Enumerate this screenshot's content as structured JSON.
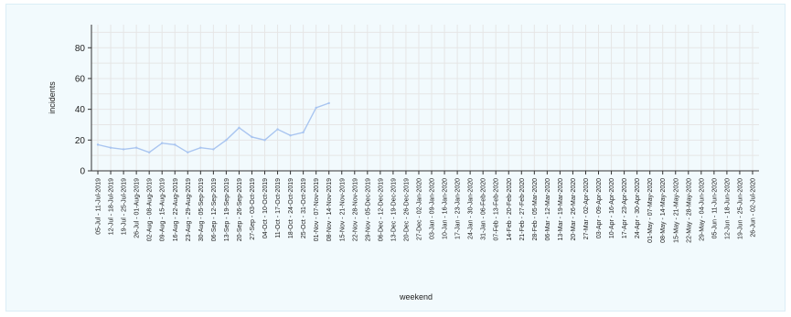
{
  "chart_data": {
    "type": "line",
    "xlabel": "weekend",
    "ylabel": "incidents",
    "ylim": [
      0,
      95
    ],
    "yticks": [
      0,
      20,
      40,
      60,
      80
    ],
    "grid": true,
    "line_color": "#a9c5f0",
    "x": [
      "05-Jul - 11-Jul-2019",
      "12-Jul - 18-Jul-2019",
      "19-Jul - 25-Jul-2019",
      "26-Jul - 01-Aug-2019",
      "02-Aug - 08-Aug-2019",
      "09-Aug - 15-Aug-2019",
      "16-Aug - 22-Aug-2019",
      "23-Aug - 29-Aug-2019",
      "30-Aug - 05-Sep-2019",
      "06-Sep - 12-Sep-2019",
      "13-Sep - 19-Sep-2019",
      "20-Sep - 26-Sep-2019",
      "27-Sep - 03-Oct-2019",
      "04-Oct - 10-Oct-2019",
      "11-Oct - 17-Oct-2019",
      "18-Oct - 24-Oct-2019",
      "25-Oct - 31-Oct-2019",
      "01-Nov - 07-Nov-2019",
      "08-Nov - 14-Nov-2019",
      "15-Nov - 21-Nov-2019",
      "22-Nov - 28-Nov-2019",
      "29-Nov - 05-Dec-2019",
      "06-Dec - 12-Dec-2019",
      "13-Dec - 19-Dec-2019",
      "20-Dec - 26-Dec-2019",
      "27-Dec - 02-Jan-2020",
      "03-Jan - 09-Jan-2020",
      "10-Jan - 16-Jan-2020",
      "17-Jan - 23-Jan-2020",
      "24-Jan - 30-Jan-2020",
      "31-Jan - 06-Feb-2020",
      "07-Feb - 13-Feb-2020",
      "14-Feb - 20-Feb-2020",
      "21-Feb - 27-Feb-2020",
      "28-Feb - 05-Mar-2020",
      "06-Mar - 12-Mar-2020",
      "13-Mar - 19-Mar-2020",
      "20-Mar - 26-Mar-2020",
      "27-Mar - 02-Apr-2020",
      "03-Apr - 09-Apr-2020",
      "10-Apr - 16-Apr-2020",
      "17-Apr - 23-Apr-2020",
      "24-Apr - 30-Apr-2020",
      "01-May - 07-May-2020",
      "08-May - 14-May-2020",
      "15-May - 21-May-2020",
      "22-May - 28-May-2020",
      "29-May - 04-Jun-2020",
      "05-Jun - 11-Jun-2020",
      "12-Jun - 18-Jun-2020",
      "19-Jun - 25-Jun-2020",
      "26-Jun - 02-Jul-2020"
    ],
    "series": [
      {
        "values": [
          17,
          15,
          14,
          15,
          12,
          18,
          17,
          12,
          15,
          14,
          20,
          28,
          22,
          20,
          27,
          23,
          25,
          41,
          44,
          null,
          null,
          null,
          null,
          null,
          null,
          null,
          null,
          null,
          null,
          null,
          null,
          null,
          null,
          null,
          null,
          null,
          null,
          null,
          null,
          null,
          null,
          null,
          null,
          null,
          null,
          null,
          null,
          null,
          null,
          null,
          null,
          null
        ]
      }
    ]
  }
}
